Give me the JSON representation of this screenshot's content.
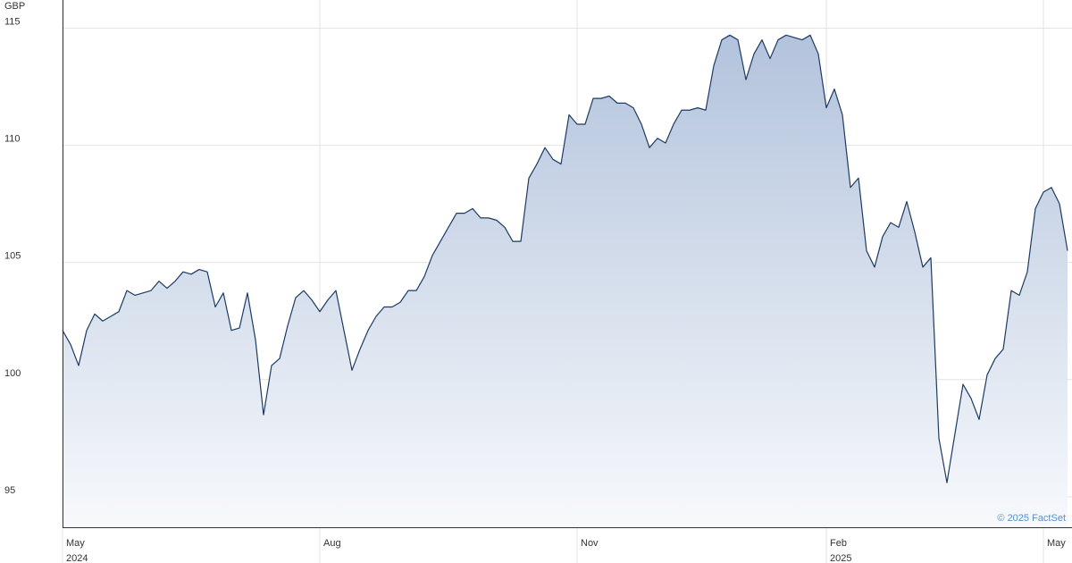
{
  "chart_data": {
    "type": "area",
    "unit_label": "GBP",
    "credit": "© 2025 FactSet",
    "categories": [
      "May",
      null,
      null,
      null,
      null,
      null,
      null,
      null,
      null,
      null,
      null,
      null,
      null,
      null,
      null,
      null,
      null,
      null,
      null,
      null,
      null,
      null,
      null,
      null,
      null,
      null,
      null,
      null,
      null,
      null,
      null,
      null,
      "Aug",
      null,
      null,
      null,
      null,
      null,
      null,
      null,
      null,
      null,
      null,
      null,
      null,
      null,
      null,
      null,
      null,
      null,
      null,
      null,
      null,
      null,
      null,
      null,
      null,
      null,
      null,
      null,
      null,
      null,
      null,
      null,
      "Nov",
      null,
      null,
      null,
      null,
      null,
      null,
      null,
      null,
      null,
      null,
      null,
      null,
      null,
      null,
      null,
      null,
      null,
      null,
      null,
      null,
      null,
      null,
      null,
      null,
      null,
      null,
      null,
      null,
      null,
      null,
      "Feb",
      null,
      null,
      null,
      null,
      null,
      null,
      null,
      null,
      null,
      null,
      null,
      null,
      null,
      null,
      null,
      null,
      null,
      null,
      null,
      null,
      null,
      null,
      null,
      null,
      null,
      null,
      "May",
      null,
      null,
      null
    ],
    "x_sublabels": [
      "2024",
      null,
      null,
      null,
      null,
      null,
      null,
      null,
      null,
      null,
      null,
      null,
      null,
      null,
      null,
      null,
      null,
      null,
      null,
      null,
      null,
      null,
      null,
      null,
      null,
      null,
      null,
      null,
      null,
      null,
      null,
      null,
      null,
      null,
      null,
      null,
      null,
      null,
      null,
      null,
      null,
      null,
      null,
      null,
      null,
      null,
      null,
      null,
      null,
      null,
      null,
      null,
      null,
      null,
      null,
      null,
      null,
      null,
      null,
      null,
      null,
      null,
      null,
      null,
      null,
      null,
      null,
      null,
      null,
      null,
      null,
      null,
      null,
      null,
      null,
      null,
      null,
      null,
      null,
      null,
      null,
      null,
      null,
      null,
      null,
      null,
      null,
      null,
      null,
      null,
      null,
      null,
      null,
      null,
      null,
      "2025",
      null,
      null,
      null,
      null,
      null,
      null,
      null,
      null,
      null,
      null,
      null,
      null,
      null,
      null,
      null,
      null,
      null,
      null,
      null,
      null,
      null,
      null,
      null,
      null,
      null,
      null,
      null,
      null,
      null,
      null
    ],
    "series": [
      {
        "color": "#1c3a63",
        "values": [
          102.1,
          101.5,
          100.6,
          102.1,
          102.8,
          102.5,
          102.7,
          102.9,
          103.8,
          103.6,
          103.7,
          103.8,
          104.2,
          103.9,
          104.2,
          104.6,
          104.5,
          104.7,
          104.6,
          103.1,
          103.7,
          102.1,
          102.2,
          103.7,
          101.7,
          98.5,
          100.6,
          100.9,
          102.3,
          103.5,
          103.8,
          103.4,
          102.9,
          103.4,
          103.8,
          102.1,
          100.4,
          101.3,
          102.1,
          102.7,
          103.1,
          103.1,
          103.3,
          103.8,
          103.8,
          104.4,
          105.3,
          105.9,
          106.5,
          107.1,
          107.1,
          107.3,
          106.9,
          106.9,
          106.8,
          106.5,
          105.9,
          105.9,
          108.6,
          109.2,
          109.9,
          109.4,
          109.2,
          111.3,
          110.9,
          110.9,
          112.0,
          112.0,
          112.1,
          111.8,
          111.8,
          111.6,
          110.9,
          109.9,
          110.3,
          110.1,
          110.9,
          111.5,
          111.5,
          111.6,
          111.5,
          113.4,
          114.5,
          114.7,
          114.5,
          112.8,
          113.9,
          114.5,
          113.7,
          114.5,
          114.7,
          114.6,
          114.5,
          114.7,
          113.9,
          111.6,
          112.4,
          111.3,
          108.2,
          108.6,
          105.5,
          104.8,
          106.1,
          106.7,
          106.5,
          107.6,
          106.3,
          104.8,
          105.2,
          97.5,
          95.6,
          97.7,
          99.8,
          99.2,
          98.3,
          100.2,
          100.9,
          101.3,
          103.8,
          103.6,
          104.6,
          107.3,
          108.0,
          108.2,
          107.5,
          105.5
        ]
      }
    ],
    "ylim": [
      93.7,
      116.2
    ],
    "yticks": [
      95,
      100,
      105,
      110,
      115
    ],
    "grid": true
  }
}
